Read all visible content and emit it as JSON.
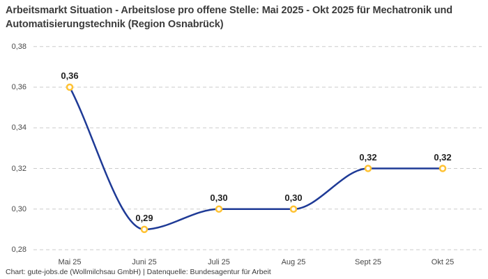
{
  "title": "Arbeitsmarkt Situation - Arbeitslose pro offene Stelle: Mai 2025 - Okt 2025 für Mechatronik und Automatisierungstechnik (Region Osnabrück)",
  "footer": {
    "attribution": "Chart: gute-jobs.de (Wollmilchsau GmbH) | Datenquelle: Bundesagentur für Arbeit"
  },
  "colors": {
    "line": "#1e3a96",
    "marker_ring": "#ffc233",
    "marker_fill": "#ffffff",
    "gridline": "#cbcbcb",
    "title_text": "#3b3b3b",
    "axis_text": "#474747",
    "point_label_text": "#1f1f1f"
  },
  "chart_data": {
    "type": "line",
    "title": "Arbeitsmarkt Situation - Arbeitslose pro offene Stelle: Mai 2025 - Okt 2025 für Mechatronik und Automatisierungstechnik (Region Osnabrück)",
    "categories": [
      "Mai 25",
      "Juni 25",
      "Juli 25",
      "Aug 25",
      "Sept 25",
      "Okt 25"
    ],
    "values": [
      0.36,
      0.29,
      0.3,
      0.3,
      0.32,
      0.32
    ],
    "point_labels": [
      "0,36",
      "0,29",
      "0,30",
      "0,30",
      "0,32",
      "0,32"
    ],
    "ytick_values": [
      0.38,
      0.36,
      0.34,
      0.32,
      0.3,
      0.28
    ],
    "ytick_labels": [
      "0,38",
      "0,36",
      "0,34",
      "0,32",
      "0,30",
      "0,28"
    ],
    "ylim": [
      0.28,
      0.38
    ],
    "xlabel": "",
    "ylabel": "",
    "grid": "horizontal-dashed",
    "legend": "none",
    "interpolation": "monotone-spline",
    "series": [
      {
        "name": "Arbeitslose pro offene Stelle",
        "values": [
          0.36,
          0.29,
          0.3,
          0.3,
          0.32,
          0.32
        ]
      }
    ]
  }
}
